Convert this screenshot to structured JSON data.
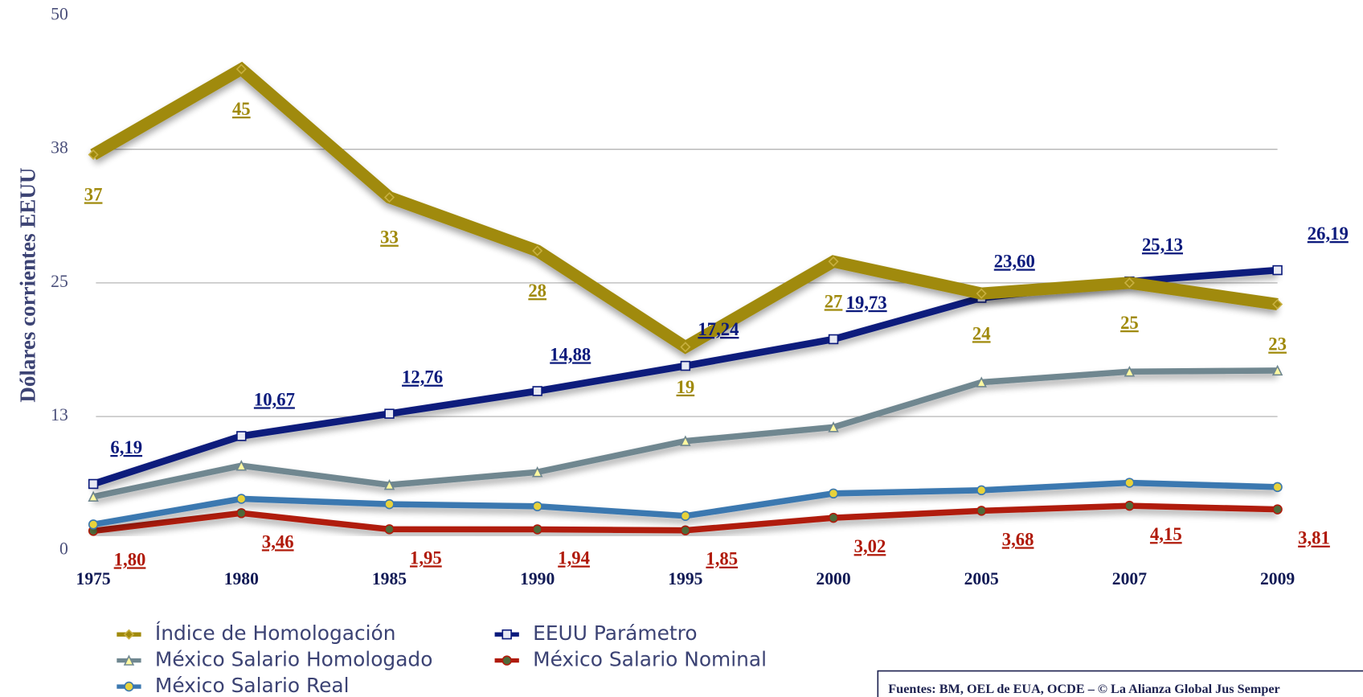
{
  "chart_data": {
    "type": "line",
    "y_label": "Dólares corrientes EEUU",
    "source": "Fuentes: BM, OEL de EUA, OCDE – © La Alianza Global Jus Semper",
    "categories": [
      "1975",
      "1980",
      "1985",
      "1990",
      "1995",
      "2000",
      "2005",
      "2007",
      "2009"
    ],
    "ylim": [
      0,
      50
    ],
    "yticks": [
      0,
      {
        "value": 12.5,
        "label": "13"
      },
      25,
      {
        "value": 37.5,
        "label": "38"
      },
      50
    ],
    "grid": true,
    "series": [
      {
        "name": "Índice de Homologación",
        "color": "#a08a0c",
        "marker": "diamond",
        "width": 14,
        "values": [
          37,
          45,
          33,
          28,
          19,
          27,
          24,
          25,
          23
        ]
      },
      {
        "name": "EEUU Parámetro",
        "color": "#0b1a7c",
        "marker": "square",
        "width": 8,
        "values": [
          6.19,
          10.67,
          12.76,
          14.88,
          17.24,
          19.73,
          23.6,
          25.13,
          26.19
        ],
        "value_labels": [
          "6,19",
          "10,67",
          "12,76",
          "14,88",
          "17,24",
          "19,73",
          "23,60",
          "25,13",
          "26,19"
        ]
      },
      {
        "name": "México Salario Homologado",
        "color": "#6f8790",
        "marker": "triangle",
        "width": 7,
        "values": [
          5.0,
          7.9,
          6.1,
          7.3,
          10.2,
          11.5,
          15.7,
          16.7,
          16.8
        ]
      },
      {
        "name": "México Salario Nominal",
        "color": "#b01a0a",
        "marker": "circle",
        "width": 7,
        "values": [
          1.8,
          3.46,
          1.95,
          1.94,
          1.85,
          3.02,
          3.68,
          4.15,
          3.81
        ],
        "value_labels": [
          "1,80",
          "3,46",
          "1,95",
          "1,94",
          "1,85",
          "3,02",
          "3,68",
          "4,15",
          "3,81"
        ]
      },
      {
        "name": "México Salario Real",
        "color": "#3b78b0",
        "marker": "circle",
        "width": 7,
        "values": [
          2.4,
          4.8,
          4.3,
          4.1,
          3.2,
          5.3,
          5.6,
          6.3,
          5.9
        ]
      }
    ]
  }
}
